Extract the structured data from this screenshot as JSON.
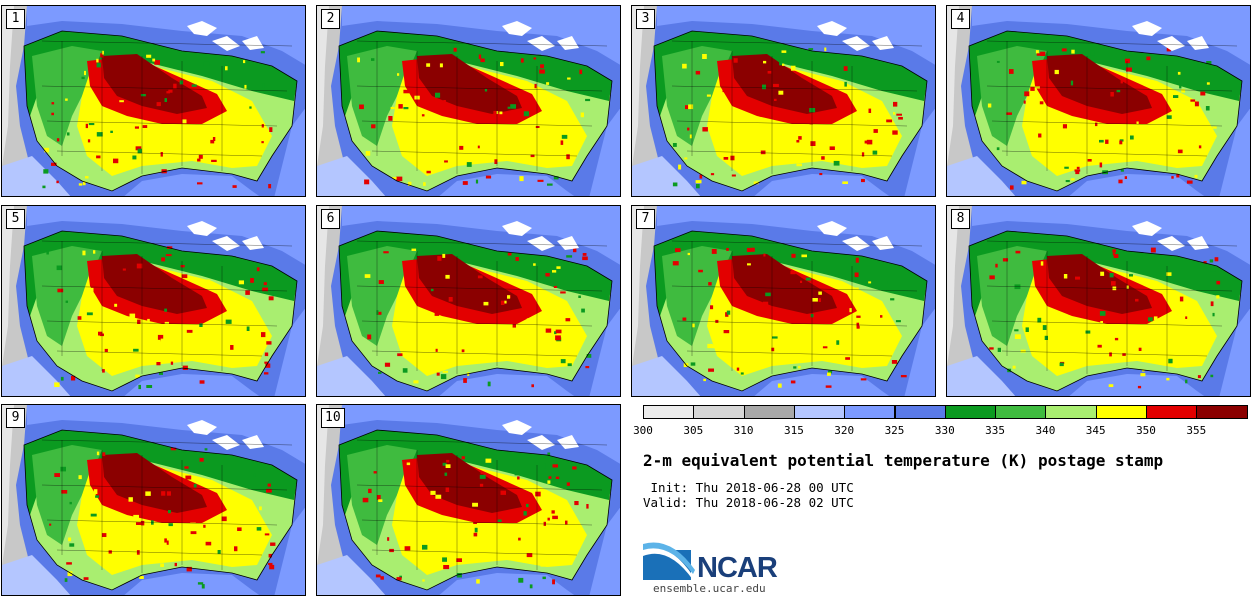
{
  "panels": [
    "1",
    "2",
    "3",
    "4",
    "5",
    "6",
    "7",
    "8",
    "9",
    "10"
  ],
  "colorbar": {
    "tick_labels": [
      "300",
      "305",
      "310",
      "315",
      "320",
      "325",
      "330",
      "335",
      "340",
      "345",
      "350",
      "355"
    ],
    "colors": [
      "#ececec",
      "#d6d6d6",
      "#a8a8a8",
      "#b4c6ff",
      "#7c9aff",
      "#5a7ae8",
      "#0b9a20",
      "#3fbb3f",
      "#a9ee70",
      "#ffff00",
      "#e30000",
      "#8b0000"
    ]
  },
  "title": "2-m equivalent potential temperature (K) postage stamp",
  "init_line": " Init: Thu 2018-06-28 00 UTC",
  "valid_line": "Valid: Thu 2018-06-28 02 UTC",
  "logo": {
    "text": "NCAR",
    "accent": "#1a70b8"
  },
  "site": "ensemble.ucar.edu"
}
